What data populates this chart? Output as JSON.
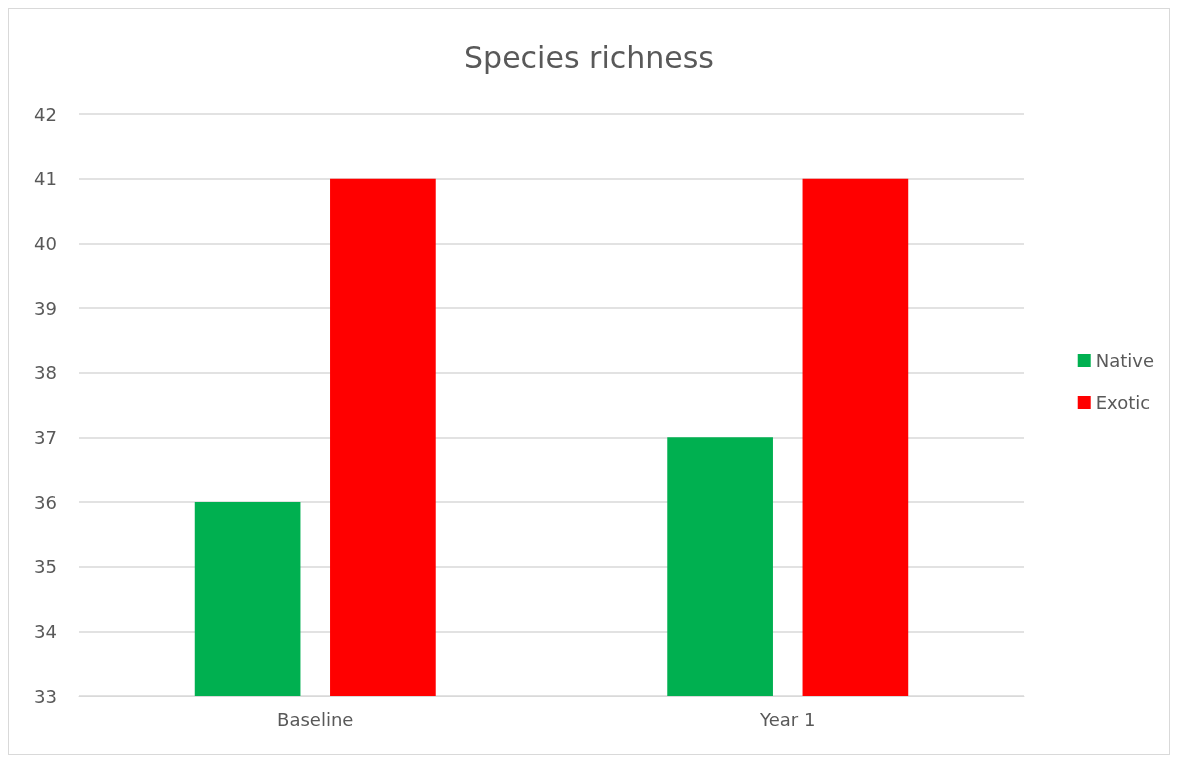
{
  "chart_data": {
    "type": "bar",
    "title": "Species richness",
    "categories": [
      "Baseline",
      "Year 1"
    ],
    "series": [
      {
        "name": "Native",
        "color": "#00b050",
        "values": [
          36,
          37
        ]
      },
      {
        "name": "Exotic",
        "color": "#ff0000",
        "values": [
          41,
          41
        ]
      }
    ],
    "ylim": [
      33,
      42
    ],
    "yticks": [
      33,
      34,
      35,
      36,
      37,
      38,
      39,
      40,
      41,
      42
    ],
    "grid": "y",
    "legend": "right"
  }
}
